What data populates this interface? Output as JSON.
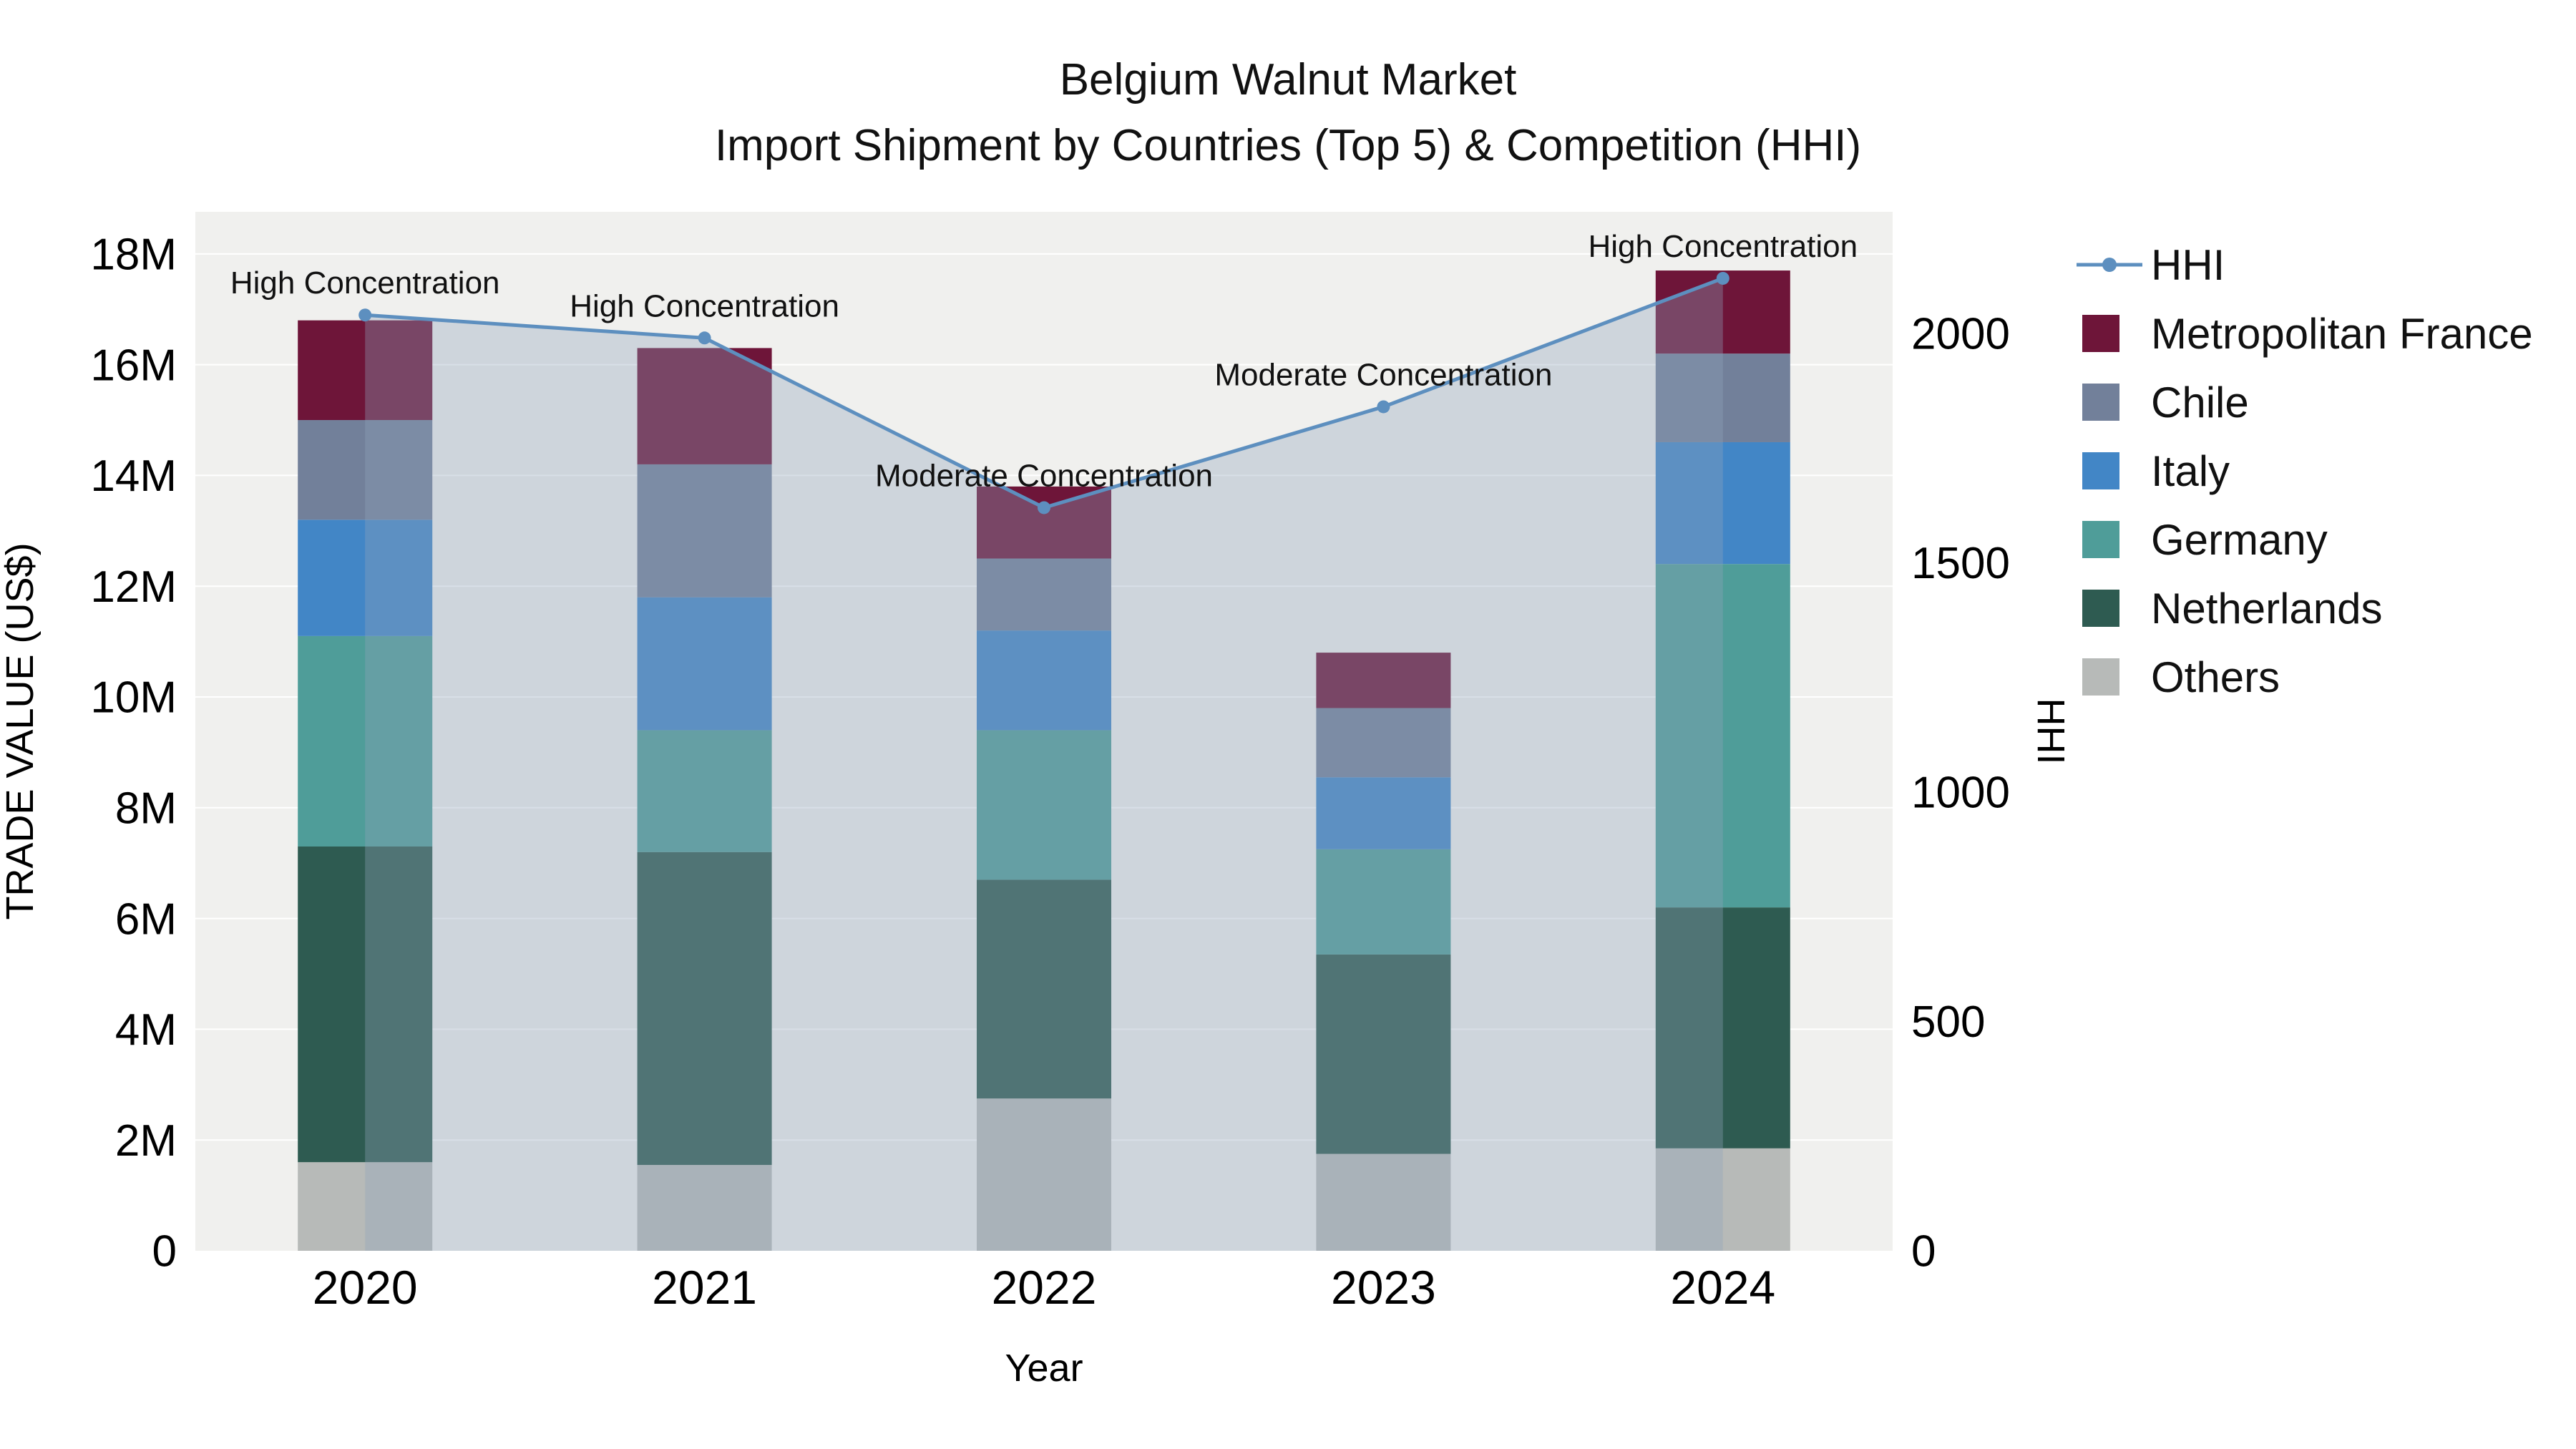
{
  "chart_data": {
    "type": "combo-stacked-bar-line",
    "title": "Belgium Walnut Market",
    "subtitle": "Import Shipment by Countries (Top 5) & Competition (HHI)",
    "xlabel": "Year",
    "ylabel_left": "TRADE VALUE (US$)",
    "ylabel_right": "HHI",
    "categories": [
      "2020",
      "2021",
      "2022",
      "2023",
      "2024"
    ],
    "bar_value_unit": "M US$",
    "bar_series": [
      {
        "name": "Others",
        "color": "#b7bab8",
        "values": [
          1.6,
          1.55,
          2.75,
          1.75,
          1.85
        ]
      },
      {
        "name": "Netherlands",
        "color": "#2e5b51",
        "values": [
          5.7,
          5.65,
          3.95,
          3.6,
          4.35
        ]
      },
      {
        "name": "Germany",
        "color": "#4f9d99",
        "values": [
          3.8,
          2.2,
          2.7,
          1.9,
          6.2
        ]
      },
      {
        "name": "Italy",
        "color": "#4286c6",
        "values": [
          2.1,
          2.4,
          1.8,
          1.3,
          2.2
        ]
      },
      {
        "name": "Chile",
        "color": "#72809a",
        "values": [
          1.8,
          2.4,
          1.3,
          1.25,
          1.6
        ]
      },
      {
        "name": "Metropolitan France",
        "color": "#6e1539",
        "values": [
          1.8,
          2.1,
          1.3,
          1.0,
          1.5
        ]
      }
    ],
    "line_series": {
      "name": "HHI",
      "color": "#5d8fbf",
      "fill_color": "rgba(143,163,185,0.35)",
      "values": [
        2040,
        1990,
        1620,
        1840,
        2120
      ]
    },
    "annotations": [
      "High Concentration",
      "High Concentration",
      "Moderate Concentration",
      "Moderate Concentration",
      "High Concentration"
    ],
    "left_axis": {
      "ticks": [
        "0",
        "2M",
        "4M",
        "6M",
        "8M",
        "10M",
        "12M",
        "14M",
        "16M",
        "18M"
      ],
      "tick_values": [
        0,
        2,
        4,
        6,
        8,
        10,
        12,
        14,
        16,
        18
      ],
      "max": 18.76
    },
    "right_axis": {
      "ticks": [
        "0",
        "500",
        "1000",
        "1500",
        "2000"
      ],
      "tick_values": [
        0,
        500,
        1000,
        1500,
        2000
      ],
      "max": 2265
    },
    "legend": {
      "position": "right",
      "entries": [
        "HHI",
        "Metropolitan France",
        "Chile",
        "Italy",
        "Germany",
        "Netherlands",
        "Others"
      ]
    },
    "plot_background": "#f0f0ee",
    "gridline_color": "#ffffff"
  }
}
